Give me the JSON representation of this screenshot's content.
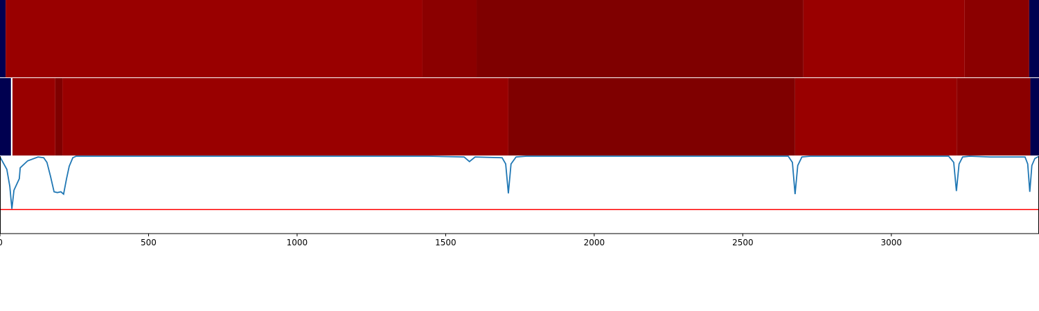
{
  "chart_data": [
    {
      "type": "segments",
      "xlim": [
        0,
        3497
      ],
      "segments": [
        {
          "start": 0,
          "end": 19,
          "color": "#000050"
        },
        {
          "start": 19,
          "end": 1422,
          "color": "#990000"
        },
        {
          "start": 1422,
          "end": 1604,
          "color": "#8b0000"
        },
        {
          "start": 1604,
          "end": 2704,
          "color": "#7f0000"
        },
        {
          "start": 2704,
          "end": 3247,
          "color": "#990000"
        },
        {
          "start": 3247,
          "end": 3464,
          "color": "#8b0000"
        },
        {
          "start": 3464,
          "end": 3497,
          "color": "#000050"
        }
      ]
    },
    {
      "type": "segments",
      "xlim": [
        0,
        3497
      ],
      "segments": [
        {
          "start": 0,
          "end": 37,
          "color": "#000050"
        },
        {
          "start": 37,
          "end": 42,
          "color": "#ffffff"
        },
        {
          "start": 42,
          "end": 186,
          "color": "#990000"
        },
        {
          "start": 186,
          "end": 210,
          "color": "#7f0000"
        },
        {
          "start": 210,
          "end": 1711,
          "color": "#990000"
        },
        {
          "start": 1711,
          "end": 2676,
          "color": "#7f0000"
        },
        {
          "start": 2676,
          "end": 3220,
          "color": "#990000"
        },
        {
          "start": 3220,
          "end": 3468,
          "color": "#8b0000"
        },
        {
          "start": 3468,
          "end": 3497,
          "color": "#000050"
        }
      ]
    },
    {
      "type": "line",
      "xlim": [
        0,
        3497
      ],
      "ylim": [
        0,
        1
      ],
      "xticks": [
        0,
        500,
        1000,
        1500,
        2000,
        2500,
        3000
      ],
      "threshold": 0.31,
      "threshold_color": "#ff0000",
      "series": [
        {
          "color": "#1f77b4",
          "x": [
            0,
            23,
            33,
            40,
            47,
            65,
            68,
            93,
            128,
            147,
            158,
            170,
            182,
            193,
            205,
            214,
            224,
            233,
            245,
            256,
            1445,
            1562,
            1580,
            1599,
            1690,
            1702,
            1711,
            1720,
            1737,
            1772,
            2653,
            2667,
            2676,
            2685,
            2699,
            2727,
            3193,
            3210,
            3219,
            3228,
            3240,
            3263,
            3333,
            3450,
            3459,
            3466,
            3473,
            3483,
            3497
          ],
          "values": [
            0.99,
            0.83,
            0.61,
            0.32,
            0.56,
            0.71,
            0.85,
            0.94,
            0.99,
            0.98,
            0.92,
            0.74,
            0.54,
            0.53,
            0.54,
            0.51,
            0.71,
            0.87,
            0.98,
            1.0,
            1.0,
            0.99,
            0.93,
            0.99,
            0.98,
            0.9,
            0.52,
            0.9,
            0.99,
            1.0,
            1.0,
            0.92,
            0.51,
            0.88,
            0.99,
            1.0,
            1.0,
            0.92,
            0.55,
            0.9,
            0.99,
            1.0,
            0.99,
            0.99,
            0.9,
            0.54,
            0.88,
            0.97,
            1.0
          ]
        }
      ]
    }
  ]
}
